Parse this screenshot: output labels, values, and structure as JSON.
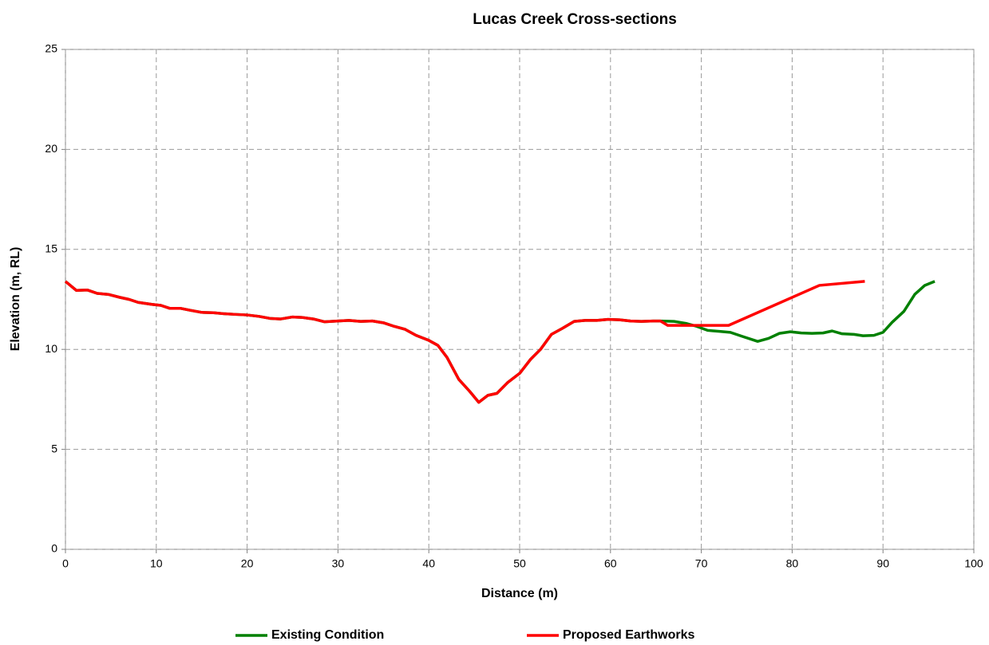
{
  "chart_data": {
    "type": "line",
    "title": "Lucas Creek Cross-sections",
    "xlabel": "Distance (m)",
    "ylabel": "Elevation (m, RL)",
    "xlim": [
      0,
      100
    ],
    "xticks": [
      0,
      10,
      20,
      30,
      40,
      50,
      60,
      70,
      80,
      90,
      100
    ],
    "ylim": [
      0,
      25
    ],
    "yticks": [
      0,
      5,
      10,
      15,
      20,
      25
    ],
    "grid": true,
    "legend": "bottom",
    "series": [
      {
        "name": "Existing Condition",
        "color": "#008000",
        "x": [
          0,
          1.2,
          2.4,
          3.5,
          4.7,
          6,
          7,
          8,
          9.5,
          10.5,
          11.5,
          12.7,
          13.8,
          15,
          16.3,
          17.5,
          18.7,
          20,
          21.3,
          22.5,
          23.7,
          25,
          26,
          27.3,
          28.5,
          30,
          31.2,
          32.5,
          33.8,
          35,
          36.2,
          37.4,
          38.6,
          40,
          41,
          42,
          43.3,
          44.5,
          45.5,
          46.5,
          47.5,
          48.7,
          50,
          51.2,
          52.3,
          53.5,
          54.7,
          56,
          57.2,
          58.5,
          59.7,
          61,
          62.2,
          63.4,
          64.7,
          65.5,
          67,
          68.3,
          69.5,
          70.7,
          72,
          73.2,
          74.5,
          76.2,
          77.4,
          78.6,
          79.8,
          81,
          82.2,
          83.4,
          84.4,
          85.5,
          86.8,
          87.8,
          89,
          90,
          91,
          92.3,
          93.5,
          94.6,
          95.7
        ],
        "values": [
          13.4,
          12.95,
          12.97,
          12.8,
          12.75,
          12.6,
          12.5,
          12.35,
          12.25,
          12.2,
          12.05,
          12.05,
          11.95,
          11.85,
          11.83,
          11.78,
          11.75,
          11.72,
          11.65,
          11.55,
          11.52,
          11.62,
          11.6,
          11.52,
          11.38,
          11.42,
          11.45,
          11.4,
          11.42,
          11.33,
          11.15,
          11.0,
          10.7,
          10.45,
          10.2,
          9.6,
          8.5,
          7.9,
          7.35,
          7.7,
          7.8,
          8.35,
          8.8,
          9.5,
          10.0,
          10.75,
          11.05,
          11.4,
          11.45,
          11.45,
          11.5,
          11.48,
          11.42,
          11.4,
          11.42,
          11.42,
          11.4,
          11.3,
          11.15,
          10.95,
          10.9,
          10.85,
          10.65,
          10.4,
          10.55,
          10.8,
          10.88,
          10.82,
          10.8,
          10.82,
          10.92,
          10.78,
          10.75,
          10.68,
          10.7,
          10.85,
          11.35,
          11.9,
          12.75,
          13.2,
          13.4
        ]
      },
      {
        "name": "Proposed Earthworks",
        "color": "#ff0000",
        "x": [
          0,
          1.2,
          2.4,
          3.5,
          4.7,
          6,
          7,
          8,
          9.5,
          10.5,
          11.5,
          12.7,
          13.8,
          15,
          16.3,
          17.5,
          18.7,
          20,
          21.3,
          22.5,
          23.7,
          25,
          26,
          27.3,
          28.5,
          30,
          31.2,
          32.5,
          33.8,
          35,
          36.2,
          37.4,
          38.6,
          40,
          41,
          42,
          43.3,
          44.5,
          45.5,
          46.5,
          47.5,
          48.7,
          50,
          51.2,
          52.3,
          53.5,
          54.7,
          56,
          57.2,
          58.5,
          59.7,
          61,
          62.2,
          63.4,
          64.7,
          65.5,
          66.3,
          68,
          73,
          83,
          88
        ],
        "values": [
          13.4,
          12.95,
          12.97,
          12.8,
          12.75,
          12.6,
          12.5,
          12.35,
          12.25,
          12.2,
          12.05,
          12.05,
          11.95,
          11.85,
          11.83,
          11.78,
          11.75,
          11.72,
          11.65,
          11.55,
          11.52,
          11.62,
          11.6,
          11.52,
          11.38,
          11.42,
          11.45,
          11.4,
          11.42,
          11.33,
          11.15,
          11.0,
          10.7,
          10.45,
          10.2,
          9.6,
          8.5,
          7.9,
          7.35,
          7.7,
          7.8,
          8.35,
          8.8,
          9.5,
          10.0,
          10.75,
          11.05,
          11.4,
          11.45,
          11.45,
          11.5,
          11.48,
          11.42,
          11.4,
          11.42,
          11.42,
          11.2,
          11.2,
          11.2,
          13.2,
          13.4
        ]
      }
    ]
  }
}
